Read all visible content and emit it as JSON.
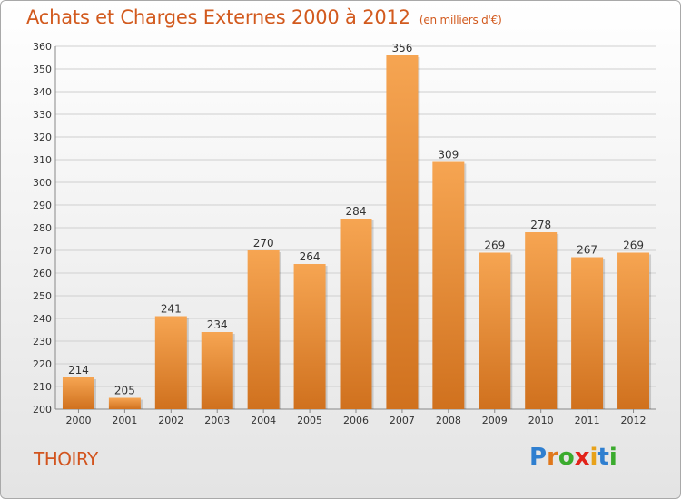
{
  "header": {
    "title": "Achats et Charges Externes 2000 à 2012",
    "units": "(en milliers d'€)"
  },
  "commune": "THOIRY",
  "logo": {
    "text": "Proxiti",
    "letter_colors": [
      "#2f7fd0",
      "#e0781c",
      "#3bab2e",
      "#e2231a",
      "#e8a21a",
      "#2f7fd0",
      "#3bab2e"
    ]
  },
  "colors": {
    "bar_light": "#f6a552",
    "bar_dark": "#d0711e",
    "title": "#d25a1e",
    "grid": "#cfcfcf"
  },
  "chart_data": {
    "type": "bar",
    "title": "Achats et Charges Externes 2000 à 2012",
    "subtitle": "(en milliers d'€)",
    "categories": [
      "2000",
      "2001",
      "2002",
      "2003",
      "2004",
      "2005",
      "2006",
      "2007",
      "2008",
      "2009",
      "2010",
      "2011",
      "2012"
    ],
    "values": [
      214,
      205,
      241,
      234,
      270,
      264,
      284,
      356,
      309,
      269,
      278,
      267,
      269
    ],
    "ylim": [
      200,
      360
    ],
    "yticks": [
      200,
      210,
      220,
      230,
      240,
      250,
      260,
      270,
      280,
      290,
      300,
      310,
      320,
      330,
      340,
      350,
      360
    ],
    "grid": true,
    "xlabel": "",
    "ylabel": ""
  }
}
